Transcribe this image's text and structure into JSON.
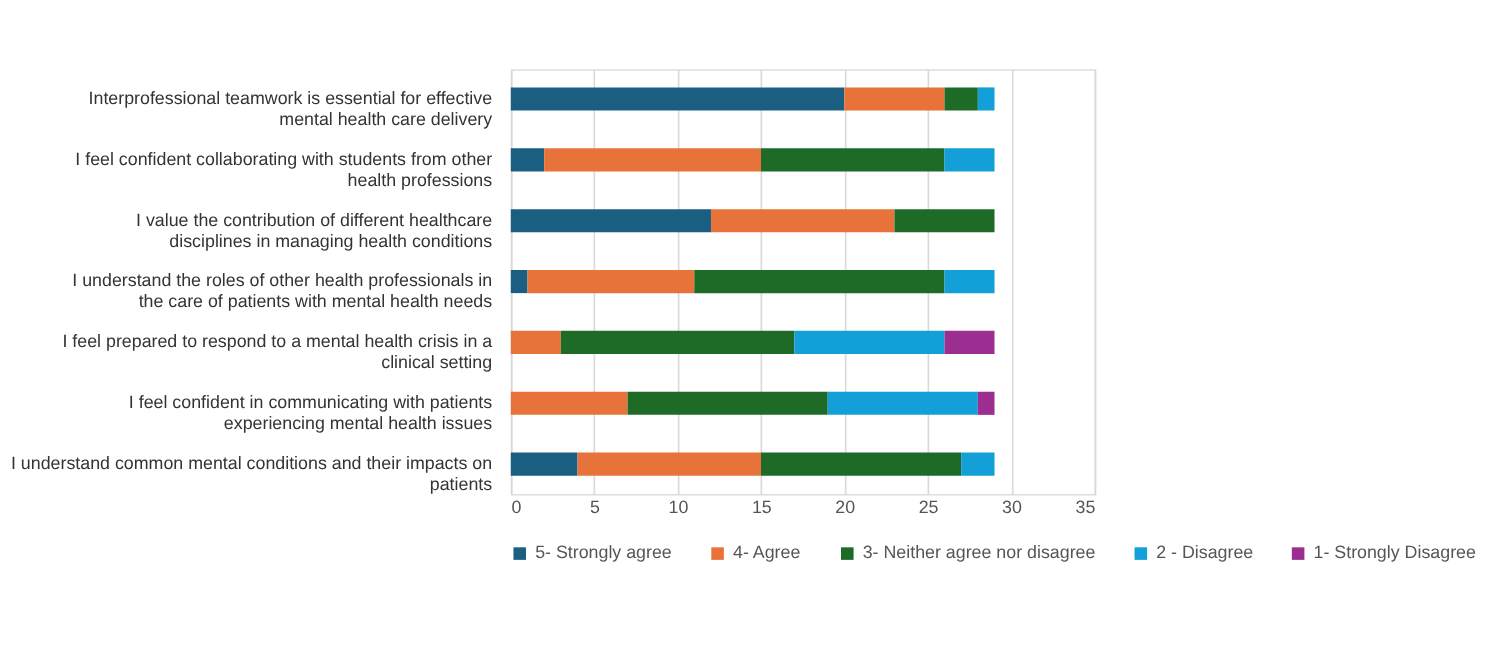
{
  "chart_data": {
    "type": "bar",
    "orientation": "horizontal",
    "stacked": true,
    "categories": [
      "Interprofessional teamwork is essential for effective mental health care delivery",
      "I feel confident collaborating with students from other health professions",
      "I value the contribution of different healthcare disciplines in managing health conditions",
      "I understand the roles of other health professionals in the care of patients with mental health needs",
      "I feel prepared to respond to a mental health crisis in a clinical setting",
      "I feel confident in communicating with patients experiencing mental health issues",
      "I understand common mental conditions and their impacts on patients"
    ],
    "series": [
      {
        "name": "5- Strongly agree",
        "color": "#1a5e82",
        "values": [
          20,
          2,
          12,
          1,
          0,
          0,
          4
        ]
      },
      {
        "name": "4- Agree",
        "color": "#e8733a",
        "values": [
          6,
          13,
          11,
          10,
          3,
          7,
          11
        ]
      },
      {
        "name": "3- Neither agree nor disagree",
        "color": "#1e6b27",
        "values": [
          2,
          11,
          6,
          15,
          14,
          12,
          12
        ]
      },
      {
        "name": "2 - Disagree",
        "color": "#13a0d8",
        "values": [
          1,
          3,
          0,
          3,
          9,
          9,
          2
        ]
      },
      {
        "name": "1- Strongly Disagree",
        "color": "#9c2d91",
        "values": [
          0,
          0,
          0,
          0,
          3,
          1,
          0
        ]
      }
    ],
    "xlim": [
      0,
      35
    ],
    "xticks": [
      0,
      5,
      10,
      15,
      20,
      25,
      30,
      35
    ],
    "grid": "x",
    "legend": "bottom"
  }
}
